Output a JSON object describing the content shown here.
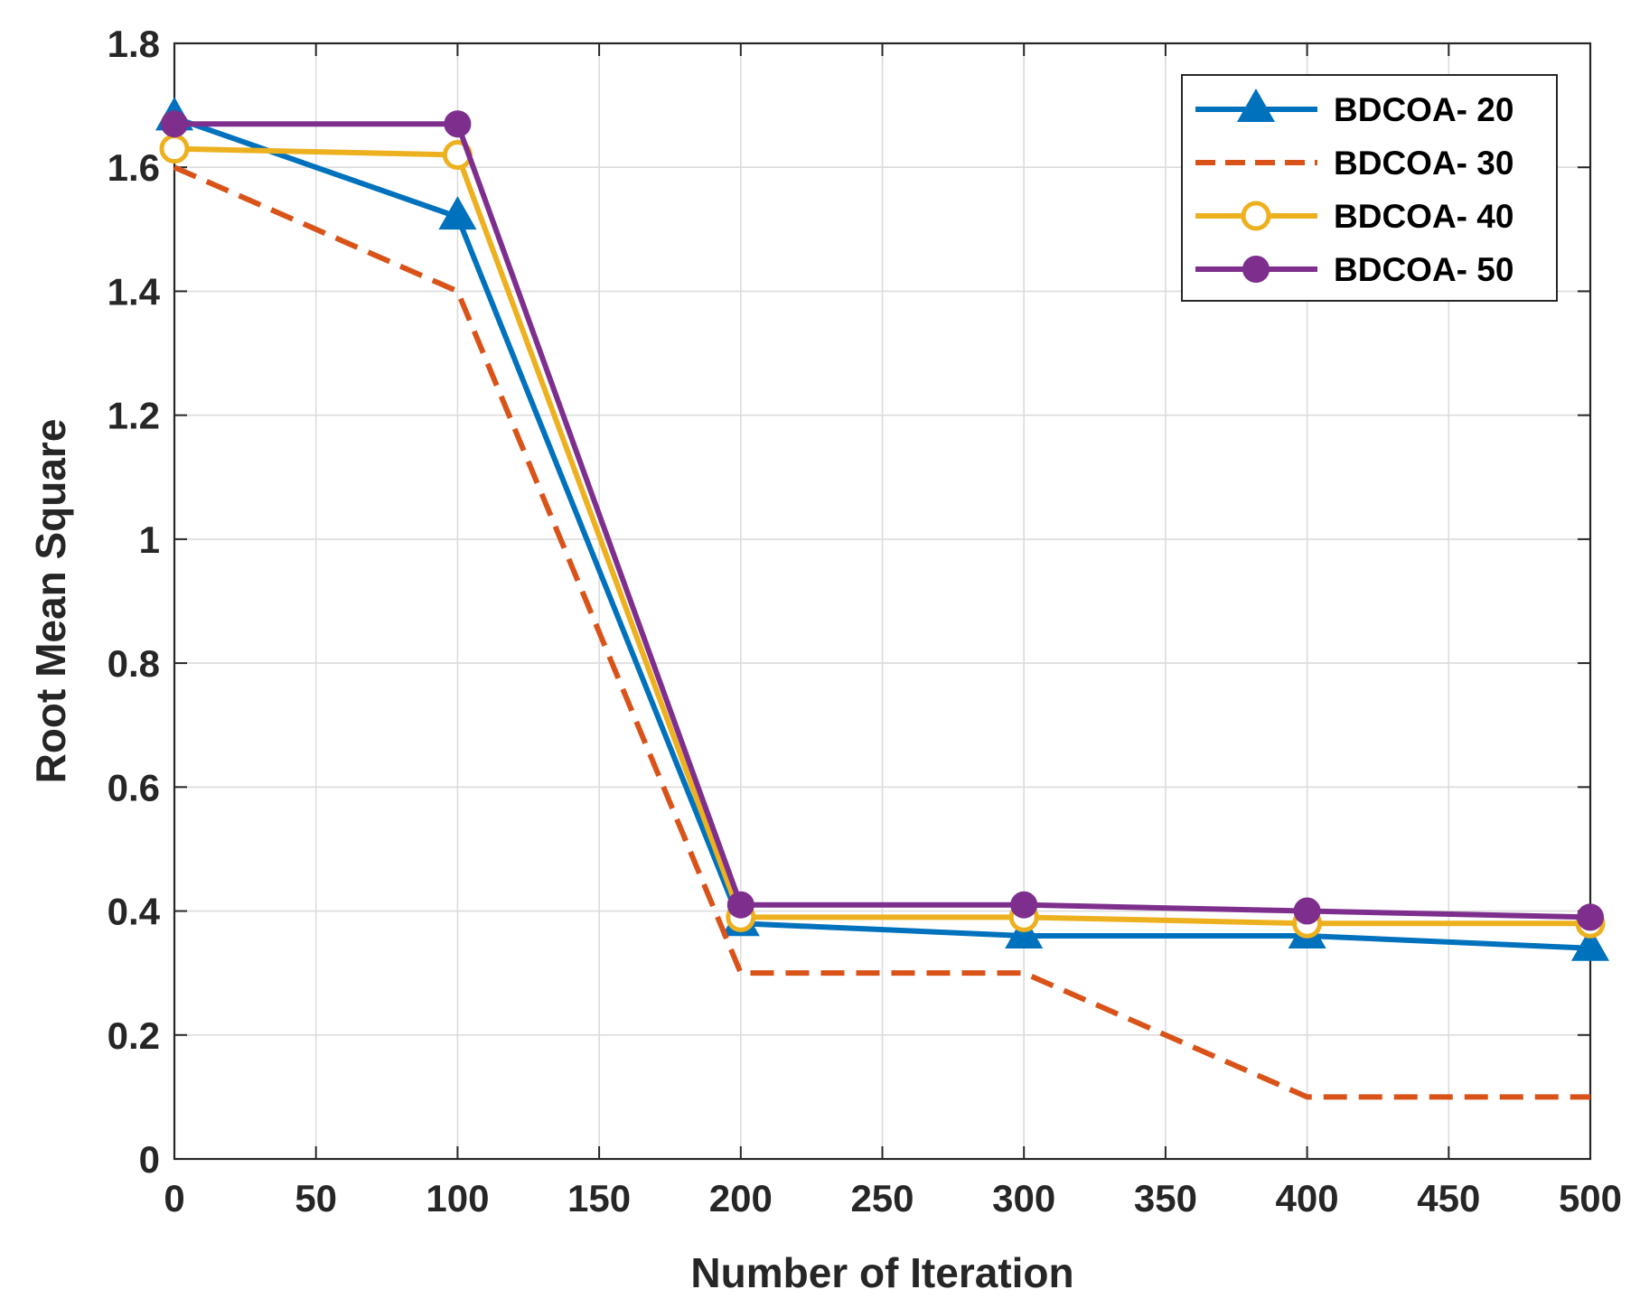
{
  "chart_data": {
    "type": "line",
    "title": "",
    "xlabel": "Number of Iteration",
    "ylabel": "Root Mean Square",
    "xlim": [
      0,
      500
    ],
    "ylim": [
      0,
      1.8
    ],
    "xticks": [
      0,
      50,
      100,
      150,
      200,
      250,
      300,
      350,
      400,
      450,
      500
    ],
    "yticks": [
      0,
      0.2,
      0.4,
      0.6,
      0.8,
      1,
      1.2,
      1.4,
      1.6,
      1.8
    ],
    "xtick_labels": [
      "0",
      "50",
      "100",
      "150",
      "200",
      "250",
      "300",
      "350",
      "400",
      "450",
      "500"
    ],
    "ytick_labels": [
      "0",
      "0.2",
      "0.4",
      "0.6",
      "0.8",
      "1",
      "1.2",
      "1.4",
      "1.6",
      "1.8"
    ],
    "grid": true,
    "legend_position": "top-right",
    "x": [
      0,
      100,
      200,
      300,
      400,
      500
    ],
    "series": [
      {
        "name": "BDCOA- 20",
        "values": [
          1.68,
          1.52,
          0.38,
          0.36,
          0.36,
          0.34
        ],
        "color": "#0072BD",
        "dash": "solid",
        "marker": "triangle"
      },
      {
        "name": "BDCOA- 30",
        "values": [
          1.6,
          1.4,
          0.3,
          0.3,
          0.1,
          0.1
        ],
        "color": "#D95319",
        "dash": "dashed",
        "marker": "none"
      },
      {
        "name": "BDCOA- 40",
        "values": [
          1.63,
          1.62,
          0.39,
          0.39,
          0.38,
          0.38
        ],
        "color": "#EDB120",
        "dash": "solid",
        "marker": "open-circle"
      },
      {
        "name": "BDCOA- 50",
        "values": [
          1.67,
          1.67,
          0.41,
          0.41,
          0.4,
          0.39
        ],
        "color": "#7E2F8E",
        "dash": "solid",
        "marker": "filled-circle"
      }
    ]
  }
}
